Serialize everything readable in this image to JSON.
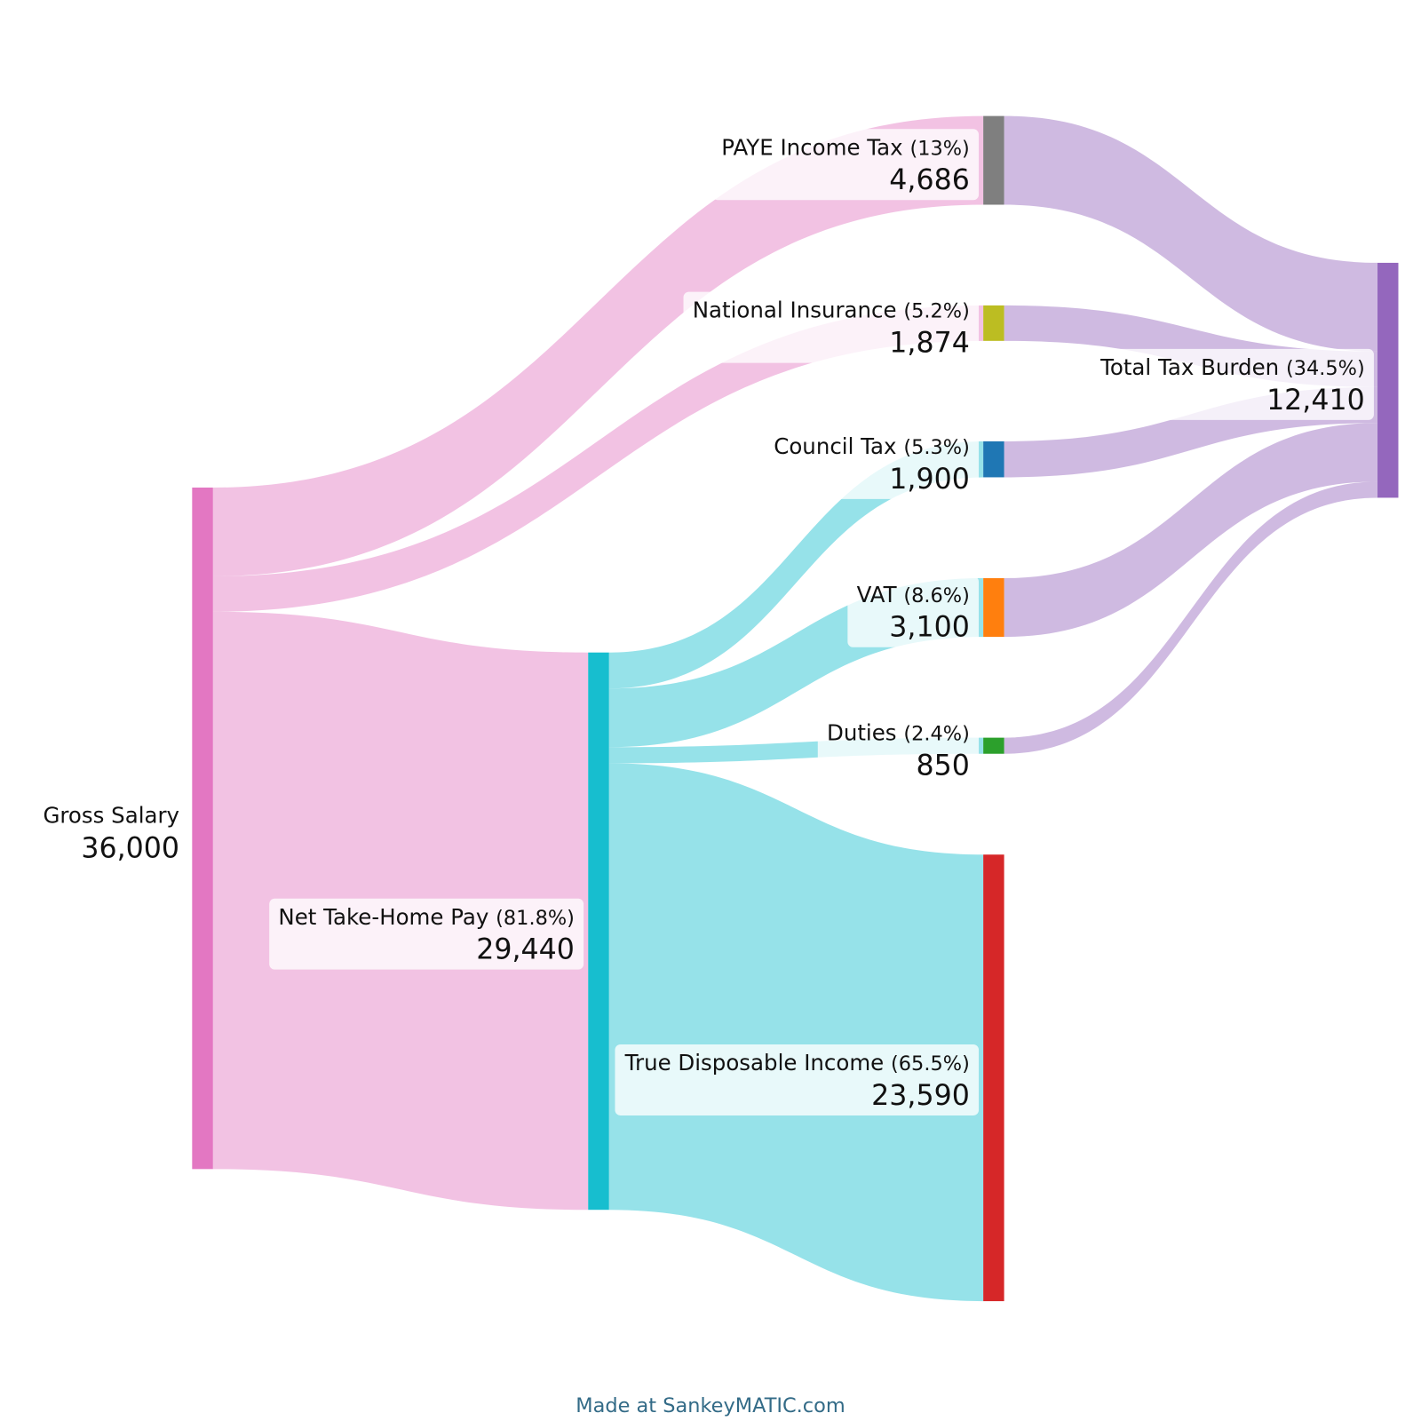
{
  "chart_data": {
    "type": "sankey",
    "nodes": [
      {
        "id": "gross",
        "name": "Gross Salary",
        "value_label": "36,000",
        "percent": "",
        "color": "#e377c2"
      },
      {
        "id": "net",
        "name": "Net Take-Home Pay",
        "value_label": "29,440",
        "percent": "(81.8%)",
        "color": "#17becf"
      },
      {
        "id": "paye",
        "name": "PAYE Income Tax",
        "value_label": "4,686",
        "percent": "(13%)",
        "color": "#7f7f7f"
      },
      {
        "id": "ni",
        "name": "National Insurance",
        "value_label": "1,874",
        "percent": "(5.2%)",
        "color": "#bcbd22"
      },
      {
        "id": "council",
        "name": "Council Tax",
        "value_label": "1,900",
        "percent": "(5.3%)",
        "color": "#1f77b4"
      },
      {
        "id": "vat",
        "name": "VAT",
        "value_label": "3,100",
        "percent": "(8.6%)",
        "color": "#ff7f0e"
      },
      {
        "id": "duties",
        "name": "Duties",
        "value_label": "850",
        "percent": "(2.4%)",
        "color": "#2ca02c"
      },
      {
        "id": "disposable",
        "name": "True Disposable Income",
        "value_label": "23,590",
        "percent": "(65.5%)",
        "color": "#d62728"
      },
      {
        "id": "total",
        "name": "Total Tax Burden",
        "value_label": "12,410",
        "percent": "(34.5%)",
        "color": "#9467bd"
      }
    ],
    "flows": [
      {
        "source": "gross",
        "target": "paye",
        "value": 4686
      },
      {
        "source": "gross",
        "target": "ni",
        "value": 1874
      },
      {
        "source": "gross",
        "target": "net",
        "value": 29440
      },
      {
        "source": "net",
        "target": "council",
        "value": 1900
      },
      {
        "source": "net",
        "target": "vat",
        "value": 3100
      },
      {
        "source": "net",
        "target": "duties",
        "value": 850
      },
      {
        "source": "net",
        "target": "disposable",
        "value": 23590
      },
      {
        "source": "paye",
        "target": "total",
        "value": 4686
      },
      {
        "source": "ni",
        "target": "total",
        "value": 1874
      },
      {
        "source": "council",
        "target": "total",
        "value": 1900
      },
      {
        "source": "vat",
        "target": "total",
        "value": 3100
      },
      {
        "source": "duties",
        "target": "total",
        "value": 850
      }
    ]
  },
  "footer": "Made at SankeyMATIC.com"
}
